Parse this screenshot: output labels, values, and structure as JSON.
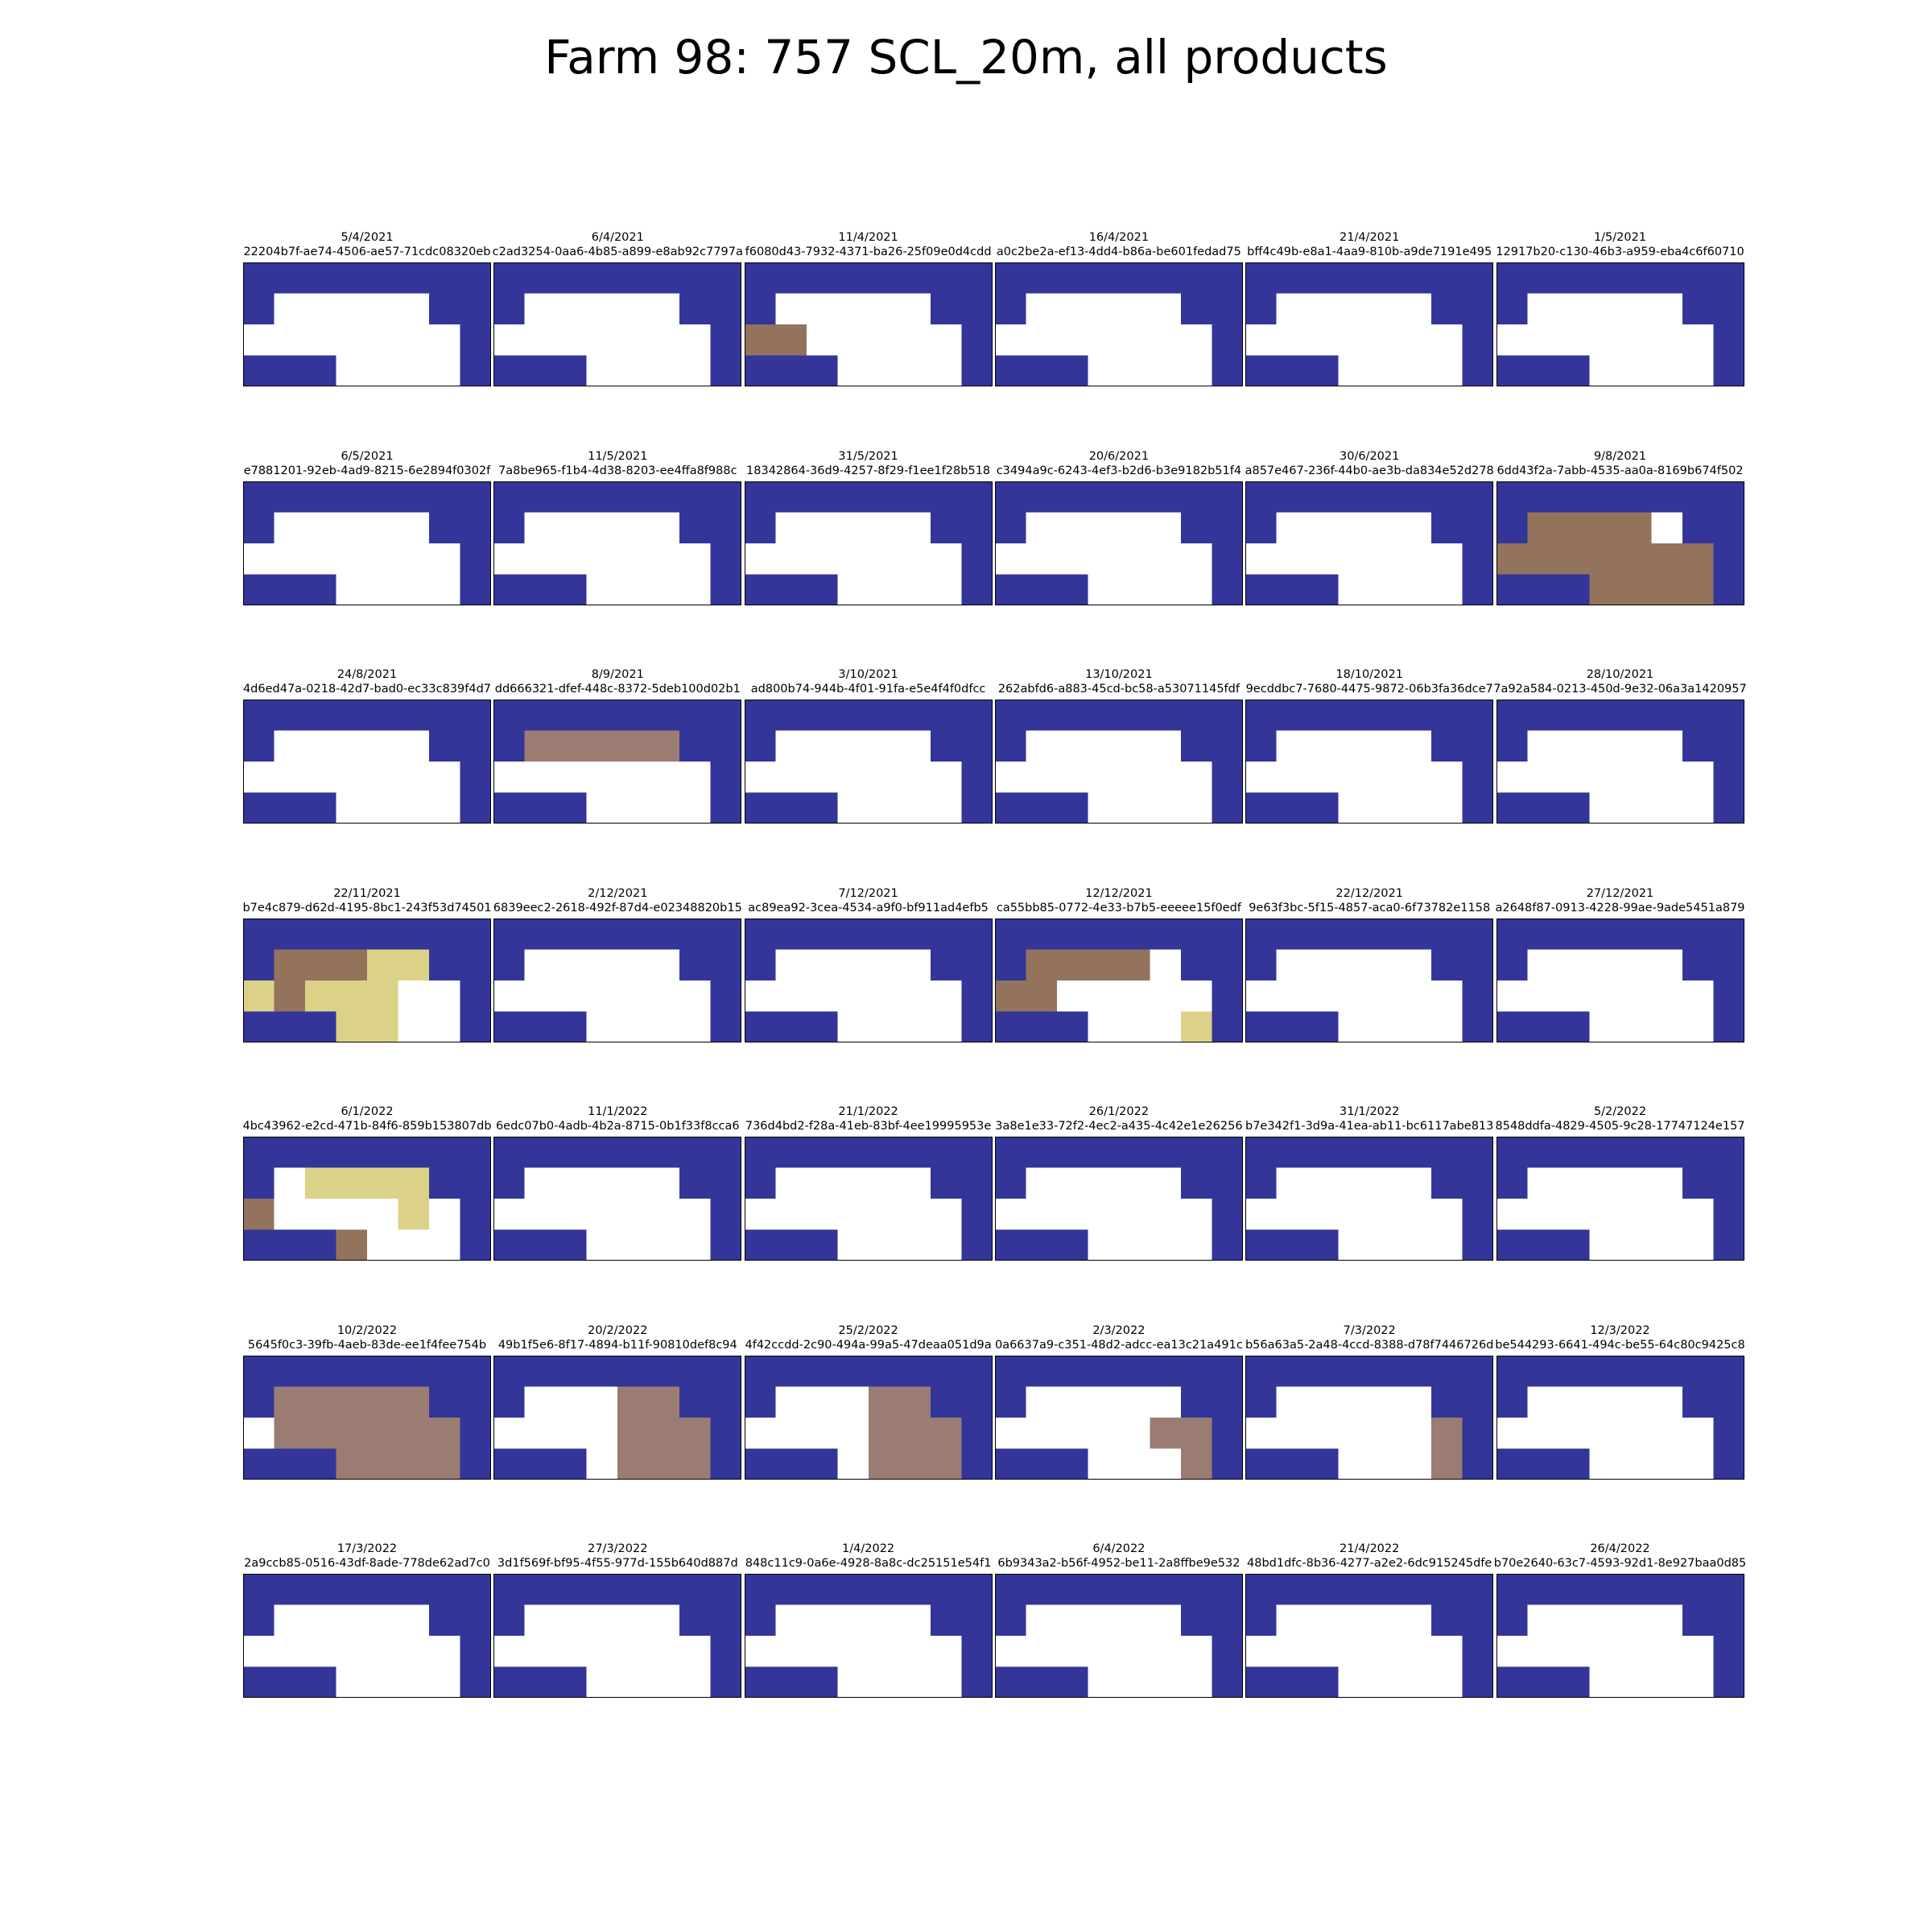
{
  "title": "Farm 98: 757 SCL_20m, all products",
  "chart_data": {
    "type": "heatmap",
    "title": "Farm 98: 757 SCL_20m, all products",
    "grid": {
      "rows": 7,
      "cols": 6,
      "cells_per_panel": {
        "rows": 4,
        "cols": 8
      }
    },
    "palette": {
      "0": "#343599",
      "1": "#ffffff",
      "2": "#93735b",
      "3": "#9a7c73",
      "4": "#dcd287"
    },
    "panels": [
      {
        "date": "5/4/2021",
        "id": "22204b7f-ae74-4506-ae57-71cdc08320eb",
        "cells": [
          "00000000",
          "01111100",
          "11111110",
          "00011110"
        ]
      },
      {
        "date": "6/4/2021",
        "id": "c2ad3254-0aa6-4b85-a899-e8ab92c7797a",
        "cells": [
          "00000000",
          "01111100",
          "11111110",
          "00011110"
        ]
      },
      {
        "date": "11/4/2021",
        "id": "f6080d43-7932-4371-ba26-25f09e0d4cdd",
        "cells": [
          "00000000",
          "01111100",
          "22111110",
          "00011110"
        ]
      },
      {
        "date": "16/4/2021",
        "id": "a0c2be2a-ef13-4dd4-b86a-be601fedad75",
        "cells": [
          "00000000",
          "01111100",
          "11111110",
          "00011110"
        ]
      },
      {
        "date": "21/4/2021",
        "id": "bff4c49b-e8a1-4aa9-810b-a9de7191e495",
        "cells": [
          "00000000",
          "01111100",
          "11111110",
          "00011110"
        ]
      },
      {
        "date": "1/5/2021",
        "id": "12917b20-c130-46b3-a959-eba4c6f60710",
        "cells": [
          "00000000",
          "01111100",
          "11111110",
          "00011110"
        ]
      },
      {
        "date": "6/5/2021",
        "id": "e7881201-92eb-4ad9-8215-6e2894f0302f",
        "cells": [
          "00000000",
          "01111100",
          "11111110",
          "00011110"
        ]
      },
      {
        "date": "11/5/2021",
        "id": "7a8be965-f1b4-4d38-8203-ee4ffa8f988c",
        "cells": [
          "00000000",
          "01111100",
          "11111110",
          "00011110"
        ]
      },
      {
        "date": "31/5/2021",
        "id": "18342864-36d9-4257-8f29-f1ee1f28b518",
        "cells": [
          "00000000",
          "01111100",
          "11111110",
          "00011110"
        ]
      },
      {
        "date": "20/6/2021",
        "id": "c3494a9c-6243-4ef3-b2d6-b3e9182b51f4",
        "cells": [
          "00000000",
          "01111100",
          "11111110",
          "00011110"
        ]
      },
      {
        "date": "30/6/2021",
        "id": "a857e467-236f-44b0-ae3b-da834e52d278",
        "cells": [
          "00000000",
          "01111100",
          "11111110",
          "00011110"
        ]
      },
      {
        "date": "9/8/2021",
        "id": "6dd43f2a-7abb-4535-aa0a-8169b674f502",
        "cells": [
          "00000000",
          "02222100",
          "22222220",
          "00022220"
        ]
      },
      {
        "date": "24/8/2021",
        "id": "4d6ed47a-0218-42d7-bad0-ec33c839f4d7",
        "cells": [
          "00000000",
          "01111100",
          "11111110",
          "00011110"
        ]
      },
      {
        "date": "8/9/2021",
        "id": "dd666321-dfef-448c-8372-5deb100d02b1",
        "cells": [
          "00000000",
          "03333300",
          "11111110",
          "00011110"
        ]
      },
      {
        "date": "3/10/2021",
        "id": "ad800b74-944b-4f01-91fa-e5e4f4f0dfcc",
        "cells": [
          "00000000",
          "01111100",
          "11111110",
          "00011110"
        ]
      },
      {
        "date": "13/10/2021",
        "id": "262abfd6-a883-45cd-bc58-a53071145fdf",
        "cells": [
          "00000000",
          "01111100",
          "11111110",
          "00011110"
        ]
      },
      {
        "date": "18/10/2021",
        "id": "9ecddbc7-7680-4475-9872-06b3fa36dce7",
        "cells": [
          "00000000",
          "01111100",
          "11111110",
          "00011110"
        ]
      },
      {
        "date": "28/10/2021",
        "id": "7a92a584-0213-450d-9e32-06a3a1420957",
        "cells": [
          "00000000",
          "01111100",
          "11111110",
          "00011110"
        ]
      },
      {
        "date": "22/11/2021",
        "id": "b7e4c879-d62d-4195-8bc1-243f53d74501",
        "cells": [
          "00000000",
          "02224400",
          "42444110",
          "00044110"
        ]
      },
      {
        "date": "2/12/2021",
        "id": "6839eec2-2618-492f-87d4-e02348820b15",
        "cells": [
          "00000000",
          "01111100",
          "11111110",
          "00011110"
        ]
      },
      {
        "date": "7/12/2021",
        "id": "ac89ea92-3cea-4534-a9f0-bf911ad4efb5",
        "cells": [
          "00000000",
          "01111100",
          "11111110",
          "00011110"
        ]
      },
      {
        "date": "12/12/2021",
        "id": "ca55bb85-0772-4e33-b7b5-eeeee15f0edf",
        "cells": [
          "00000000",
          "02222100",
          "22111110",
          "00011140"
        ]
      },
      {
        "date": "22/12/2021",
        "id": "9e63f3bc-5f15-4857-aca0-6f73782e1158",
        "cells": [
          "00000000",
          "01111100",
          "11111110",
          "00011110"
        ]
      },
      {
        "date": "27/12/2021",
        "id": "a2648f87-0913-4228-99ae-9ade5451a879",
        "cells": [
          "00000000",
          "01111100",
          "11111110",
          "00011110"
        ]
      },
      {
        "date": "6/1/2022",
        "id": "4bc43962-e2cd-471b-84f6-859b153807db",
        "cells": [
          "00000000",
          "01444400",
          "21111410",
          "00021110"
        ]
      },
      {
        "date": "11/1/2022",
        "id": "6edc07b0-4adb-4b2a-8715-0b1f33f8cca6",
        "cells": [
          "00000000",
          "01111100",
          "11111110",
          "00011110"
        ]
      },
      {
        "date": "21/1/2022",
        "id": "736d4bd2-f28a-41eb-83bf-4ee19995953e",
        "cells": [
          "00000000",
          "01111100",
          "11111110",
          "00011110"
        ]
      },
      {
        "date": "26/1/2022",
        "id": "3a8e1e33-72f2-4ec2-a435-4c42e1e26256",
        "cells": [
          "00000000",
          "01111100",
          "11111110",
          "00011110"
        ]
      },
      {
        "date": "31/1/2022",
        "id": "b7e342f1-3d9a-41ea-ab11-bc6117abe813",
        "cells": [
          "00000000",
          "01111100",
          "11111110",
          "00011110"
        ]
      },
      {
        "date": "5/2/2022",
        "id": "8548ddfa-4829-4505-9c28-17747124e157",
        "cells": [
          "00000000",
          "01111100",
          "11111110",
          "00011110"
        ]
      },
      {
        "date": "10/2/2022",
        "id": "5645f0c3-39fb-4aeb-83de-ee1f4fee754b",
        "cells": [
          "00000000",
          "03333300",
          "13333330",
          "00033330"
        ]
      },
      {
        "date": "20/2/2022",
        "id": "49b1f5e6-8f17-4894-b11f-90810def8c94",
        "cells": [
          "00000000",
          "01113300",
          "11113330",
          "00013330"
        ]
      },
      {
        "date": "25/2/2022",
        "id": "4f42ccdd-2c90-494a-99a5-47deaa051d9a",
        "cells": [
          "00000000",
          "01113300",
          "11113330",
          "00013330"
        ]
      },
      {
        "date": "2/3/2022",
        "id": "0a6637a9-c351-48d2-adcc-ea13c21a491c",
        "cells": [
          "00000000",
          "01111100",
          "11111330",
          "00011130"
        ]
      },
      {
        "date": "7/3/2022",
        "id": "b56a63a5-2a48-4ccd-8388-d78f7446726d",
        "cells": [
          "00000000",
          "01111100",
          "11111130",
          "00011130"
        ]
      },
      {
        "date": "12/3/2022",
        "id": "be544293-6641-494c-be55-64c80c9425c8",
        "cells": [
          "00000000",
          "01111100",
          "11111110",
          "00011110"
        ]
      },
      {
        "date": "17/3/2022",
        "id": "2a9ccb85-0516-43df-8ade-778de62ad7c0",
        "cells": [
          "00000000",
          "01111100",
          "11111110",
          "00011110"
        ]
      },
      {
        "date": "27/3/2022",
        "id": "3d1f569f-bf95-4f55-977d-155b640d887d",
        "cells": [
          "00000000",
          "01111100",
          "11111110",
          "00011110"
        ]
      },
      {
        "date": "1/4/2022",
        "id": "848c11c9-0a6e-4928-8a8c-dc25151e54f1",
        "cells": [
          "00000000",
          "01111100",
          "11111110",
          "00011110"
        ]
      },
      {
        "date": "6/4/2022",
        "id": "6b9343a2-b56f-4952-be11-2a8ffbe9e532",
        "cells": [
          "00000000",
          "01111100",
          "11111110",
          "00011110"
        ]
      },
      {
        "date": "21/4/2022",
        "id": "48bd1dfc-8b36-4277-a2e2-6dc915245dfe",
        "cells": [
          "00000000",
          "01111100",
          "11111110",
          "00011110"
        ]
      },
      {
        "date": "26/4/2022",
        "id": "b70e2640-63c7-4593-92d1-8e927baa0d85",
        "cells": [
          "00000000",
          "01111100",
          "11111110",
          "00011110"
        ]
      }
    ]
  }
}
